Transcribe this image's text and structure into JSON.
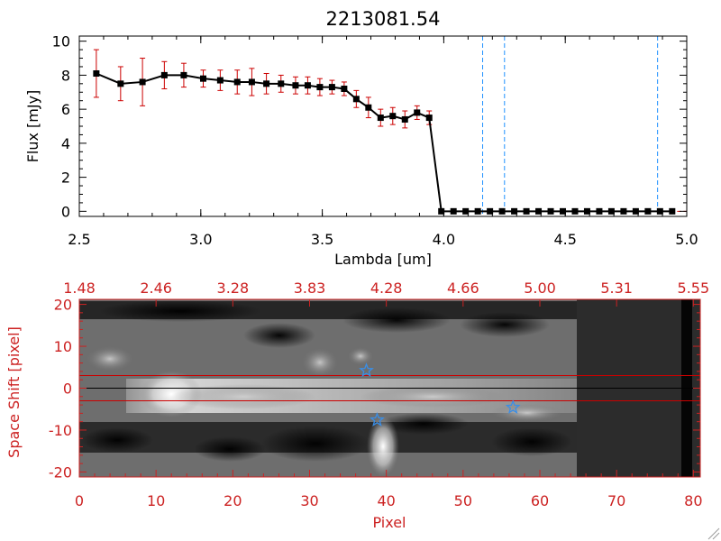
{
  "chart_data": [
    {
      "type": "line",
      "title": "2213081.54",
      "xlabel": "Lambda [um]",
      "ylabel": "Flux [mJy]",
      "xlim": [
        2.5,
        5.0
      ],
      "ylim": [
        -0.3,
        10.3
      ],
      "xticks": [
        "2.5",
        "3.0",
        "3.5",
        "4.0",
        "4.5",
        "5.0"
      ],
      "yticks": [
        "0",
        "2",
        "4",
        "6",
        "8",
        "10"
      ],
      "series": [
        {
          "x": [
            2.57,
            2.67,
            2.76,
            2.85,
            2.93,
            3.01,
            3.08,
            3.15,
            3.21,
            3.27,
            3.33,
            3.39,
            3.44,
            3.49,
            3.54,
            3.59,
            3.64,
            3.69,
            3.74,
            3.79,
            3.84,
            3.89,
            3.94,
            3.99,
            4.04,
            4.09,
            4.14,
            4.19,
            4.24,
            4.29,
            4.34,
            4.39,
            4.44,
            4.49,
            4.54,
            4.59,
            4.64,
            4.69,
            4.74,
            4.79,
            4.84,
            4.89,
            4.94
          ],
          "y": [
            8.1,
            7.5,
            7.6,
            8.0,
            8.0,
            7.8,
            7.7,
            7.6,
            7.6,
            7.5,
            7.5,
            7.4,
            7.4,
            7.3,
            7.3,
            7.2,
            6.6,
            6.1,
            5.5,
            5.6,
            5.4,
            5.8,
            5.5,
            0.0,
            0.0,
            0.0,
            0.0,
            0.0,
            0.0,
            0.0,
            0.0,
            0.0,
            0.0,
            0.0,
            0.0,
            0.0,
            0.0,
            0.0,
            0.0,
            0.0,
            0.0,
            0.0,
            0.0
          ],
          "yerr": [
            1.4,
            1.0,
            1.4,
            0.8,
            0.7,
            0.5,
            0.6,
            0.7,
            0.8,
            0.6,
            0.5,
            0.5,
            0.5,
            0.5,
            0.4,
            0.4,
            0.5,
            0.6,
            0.5,
            0.5,
            0.5,
            0.4,
            0.4,
            0,
            0,
            0,
            0,
            0,
            0,
            0,
            0,
            0,
            0,
            0,
            0,
            0,
            0,
            0,
            0,
            0,
            0,
            0,
            0
          ]
        }
      ],
      "vertical_lines": [
        4.16,
        4.25,
        4.88
      ],
      "zero_line": 0,
      "colors": {
        "line": "#000000",
        "marker": "#000000",
        "errorbar": "#cc0000",
        "vline": "#1e90ff",
        "zero_line": "#cc0000"
      }
    },
    {
      "type": "heatmap",
      "xlabel": "Pixel",
      "ylabel": "Space Shift [pixel]",
      "xlim": [
        0,
        80.9
      ],
      "ylim": [
        -21.2,
        21.2
      ],
      "xticks": [
        "0",
        "10",
        "20",
        "30",
        "40",
        "50",
        "60",
        "70",
        "80"
      ],
      "yticks": [
        "-20",
        "-10",
        "0",
        "10",
        "20"
      ],
      "top_xticks": [
        "1.48",
        "2.46",
        "3.28",
        "3.83",
        "4.28",
        "4.66",
        "5.00",
        "5.31",
        "5.55"
      ],
      "hlines": [
        3,
        0,
        -3
      ],
      "stars": [
        {
          "x": 37.4,
          "y": 4.2
        },
        {
          "x": 38.8,
          "y": -7.6
        },
        {
          "x": 56.5,
          "y": -4.6
        }
      ],
      "colors": {
        "axes": "#cc2222",
        "hline_outer": "#cc0000",
        "hline_center": "#000000",
        "star": "#3a8ee6"
      }
    }
  ]
}
